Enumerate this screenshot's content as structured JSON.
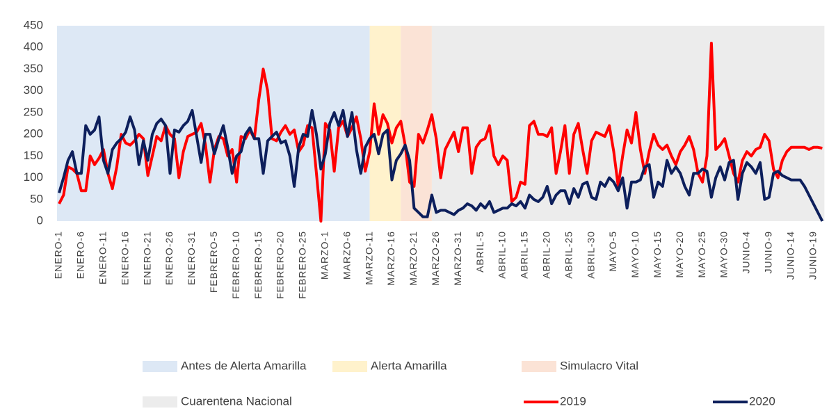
{
  "chart_data": {
    "type": "line",
    "categories": [
      "ENERO-1",
      null,
      null,
      null,
      null,
      "ENERO-6",
      null,
      null,
      null,
      null,
      "ENERO-11",
      null,
      null,
      null,
      null,
      "ENERO-16",
      null,
      null,
      null,
      null,
      "ENERO-21",
      null,
      null,
      null,
      null,
      "ENERO-26",
      null,
      null,
      null,
      null,
      "ENERO-31",
      null,
      null,
      null,
      null,
      "FEBRERO-5",
      null,
      null,
      null,
      null,
      "FEBRERO-10",
      null,
      null,
      null,
      null,
      "FEBRERO-15",
      null,
      null,
      null,
      null,
      "FEBRERO-20",
      null,
      null,
      null,
      null,
      "FEBRERO-25",
      null,
      null,
      null,
      null,
      "MARZO-1",
      null,
      null,
      null,
      null,
      "MARZO-6",
      null,
      null,
      null,
      null,
      "MARZO-11",
      null,
      null,
      null,
      null,
      "MARZO-16",
      null,
      null,
      null,
      null,
      "MARZO-21",
      null,
      null,
      null,
      null,
      "MARZO-26",
      null,
      null,
      null,
      null,
      "MARZO-31",
      null,
      null,
      null,
      null,
      "ABRIL-5",
      null,
      null,
      null,
      null,
      "ABRIL-10",
      null,
      null,
      null,
      null,
      "ABRIL-15",
      null,
      null,
      null,
      null,
      "ABRIL-20",
      null,
      null,
      null,
      null,
      "ABRIL-25",
      null,
      null,
      null,
      null,
      "ABRIL-30",
      null,
      null,
      null,
      null,
      "MAYO-5",
      null,
      null,
      null,
      null,
      "MAYO-10",
      null,
      null,
      null,
      null,
      "MAYO-15",
      null,
      null,
      null,
      null,
      "MAYO-20",
      null,
      null,
      null,
      null,
      "MAYO-25",
      null,
      null,
      null,
      null,
      "MAYO-30",
      null,
      null,
      null,
      null,
      "JUNIO-4",
      null,
      null,
      null,
      null,
      "JUNIO-9",
      null,
      null,
      null,
      null,
      "JUNIO-14",
      null,
      null,
      null,
      null,
      "JUNIO-19",
      null,
      null
    ],
    "regions": [
      {
        "name": "Antes de Alerta Amarilla",
        "color": "#dde8f5",
        "start": 0,
        "end": 70
      },
      {
        "name": "Alerta Amarilla",
        "color": "#fff2cc",
        "start": 70,
        "end": 77
      },
      {
        "name": "Simulacro Vital",
        "color": "#fbe3d6",
        "start": 77,
        "end": 84
      },
      {
        "name": "Cuarentena Nacional",
        "color": "#ececec",
        "start": 84,
        "end": 172
      }
    ],
    "series": [
      {
        "name": "2019",
        "color": "#ff0000",
        "values": [
          40,
          60,
          125,
          120,
          110,
          70,
          70,
          150,
          130,
          145,
          165,
          110,
          75,
          125,
          200,
          180,
          175,
          185,
          200,
          190,
          105,
          150,
          195,
          185,
          220,
          200,
          190,
          100,
          160,
          195,
          200,
          205,
          225,
          175,
          90,
          165,
          195,
          190,
          150,
          165,
          90,
          195,
          190,
          210,
          190,
          280,
          350,
          300,
          190,
          185,
          205,
          220,
          200,
          210,
          160,
          175,
          220,
          215,
          110,
          0,
          225,
          210,
          115,
          215,
          230,
          195,
          215,
          240,
          190,
          115,
          160,
          270,
          200,
          245,
          225,
          180,
          215,
          230,
          175,
          90,
          80,
          200,
          180,
          210,
          245,
          190,
          100,
          165,
          185,
          205,
          160,
          215,
          215,
          110,
          170,
          185,
          190,
          220,
          150,
          130,
          150,
          140,
          45,
          55,
          90,
          85,
          220,
          230,
          200,
          200,
          195,
          215,
          110,
          160,
          220,
          110,
          200,
          225,
          165,
          110,
          185,
          205,
          200,
          195,
          220,
          160,
          80,
          150,
          210,
          180,
          250,
          165,
          110,
          160,
          200,
          175,
          165,
          175,
          150,
          130,
          160,
          175,
          195,
          165,
          110,
          90,
          150,
          410,
          165,
          175,
          190,
          150,
          110,
          90,
          140,
          160,
          150,
          165,
          170,
          200,
          185,
          120,
          100,
          140,
          160,
          170,
          170,
          170,
          170,
          165,
          170,
          170,
          168
        ]
      },
      {
        "name": "2020",
        "color": "#0d1f5c",
        "values": [
          65,
          100,
          140,
          160,
          110,
          110,
          220,
          200,
          210,
          240,
          140,
          110,
          165,
          180,
          190,
          205,
          240,
          210,
          130,
          185,
          140,
          200,
          225,
          235,
          220,
          110,
          210,
          205,
          220,
          230,
          255,
          195,
          135,
          200,
          200,
          155,
          190,
          220,
          170,
          110,
          150,
          160,
          200,
          215,
          190,
          190,
          110,
          185,
          195,
          205,
          180,
          185,
          150,
          80,
          170,
          200,
          195,
          255,
          200,
          120,
          155,
          225,
          250,
          220,
          255,
          195,
          250,
          165,
          110,
          170,
          190,
          200,
          155,
          200,
          210,
          95,
          140,
          155,
          175,
          140,
          30,
          20,
          10,
          10,
          60,
          20,
          25,
          25,
          20,
          15,
          25,
          30,
          40,
          35,
          25,
          40,
          30,
          45,
          20,
          25,
          30,
          30,
          40,
          35,
          45,
          30,
          60,
          50,
          45,
          55,
          80,
          40,
          60,
          70,
          70,
          40,
          75,
          55,
          85,
          90,
          55,
          50,
          90,
          80,
          100,
          90,
          70,
          100,
          30,
          90,
          90,
          95,
          125,
          130,
          55,
          90,
          80,
          140,
          110,
          125,
          110,
          80,
          60,
          110,
          110,
          120,
          115,
          55,
          100,
          125,
          95,
          135,
          140,
          50,
          110,
          135,
          125,
          110,
          135,
          50,
          55,
          110,
          115,
          105,
          100,
          95,
          95,
          95,
          80,
          60,
          40,
          20,
          0
        ]
      }
    ],
    "ylim": [
      0,
      450
    ],
    "yticks": [
      0,
      50,
      100,
      150,
      200,
      250,
      300,
      350,
      400,
      450
    ]
  }
}
